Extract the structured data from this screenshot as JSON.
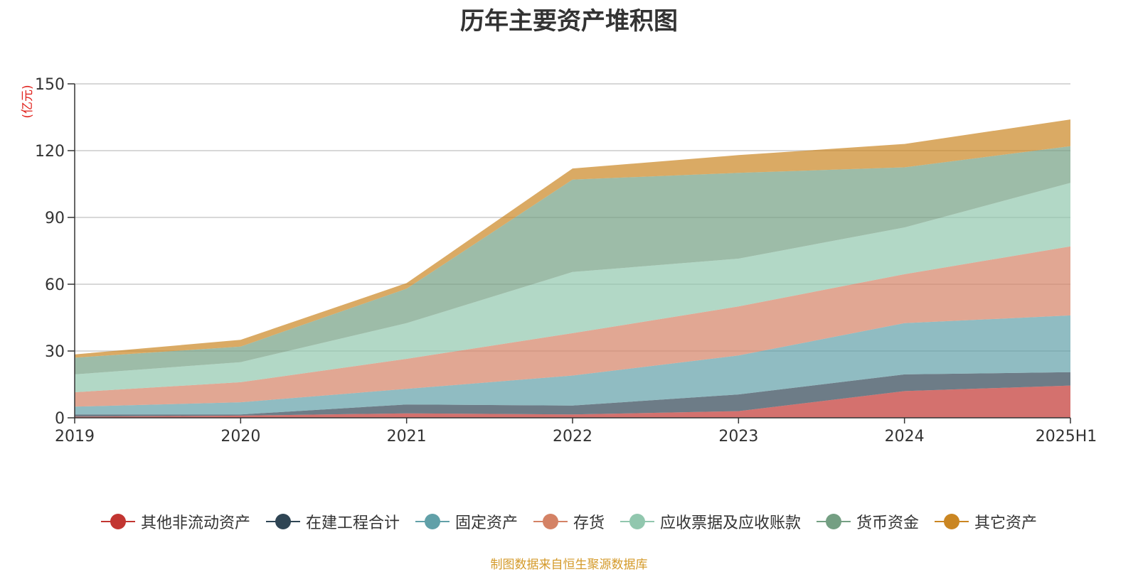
{
  "chart_data": {
    "type": "area",
    "stacked": true,
    "title": "历年主要资产堆积图",
    "ylabel": "(亿元)",
    "ylim": [
      0,
      150
    ],
    "yticks": [
      0,
      30,
      60,
      90,
      120,
      150
    ],
    "grid": true,
    "legend_position": "bottom",
    "categories": [
      "2019",
      "2020",
      "2021",
      "2022",
      "2023",
      "2024",
      "2025H1"
    ],
    "series": [
      {
        "name": "其他非流动资产",
        "color": "#c23531",
        "values": [
          0.5,
          1.0,
          2.0,
          1.5,
          3.0,
          12.0,
          14.5
        ]
      },
      {
        "name": "在建工程合计",
        "color": "#2f4554",
        "values": [
          1.0,
          0.5,
          4.0,
          4.0,
          7.5,
          7.5,
          6.0
        ]
      },
      {
        "name": "固定资产",
        "color": "#61a0a8",
        "values": [
          3.5,
          5.5,
          7.0,
          13.5,
          17.5,
          23.0,
          25.5
        ]
      },
      {
        "name": "存货",
        "color": "#d48265",
        "values": [
          6.5,
          9.0,
          13.5,
          19.0,
          22.0,
          22.0,
          31.0
        ]
      },
      {
        "name": "应收票据及应收账款",
        "color": "#91c7ae",
        "values": [
          8.0,
          9.0,
          16.0,
          27.5,
          21.5,
          21.0,
          28.5
        ]
      },
      {
        "name": "货币资金",
        "color": "#749f83",
        "values": [
          7.5,
          7.0,
          15.5,
          41.5,
          38.5,
          27.0,
          16.5
        ]
      },
      {
        "name": "其它资产",
        "color": "#ca8622",
        "values": [
          1.5,
          3.0,
          2.5,
          5.0,
          8.0,
          10.5,
          12.0
        ]
      }
    ]
  },
  "source_note": "制图数据来自恒生聚源数据库"
}
